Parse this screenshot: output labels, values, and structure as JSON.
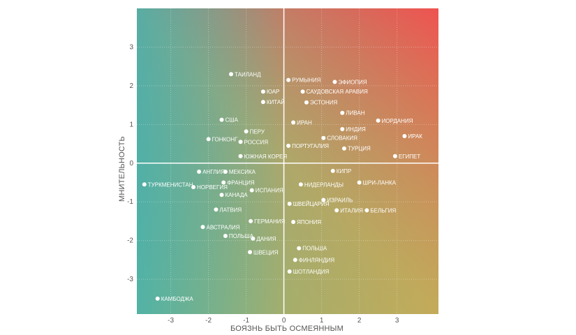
{
  "chart_data": {
    "type": "scatter",
    "title": "",
    "xlabel": "БОЯЗНЬ БЫТЬ ОСМЕЯННЫМ",
    "ylabel": "МНИТЕЛЬНОСТЬ",
    "xlim": [
      -3.9,
      4.1
    ],
    "ylim": [
      -3.9,
      4.0
    ],
    "xticks": [
      -3,
      -2,
      -1,
      0,
      1,
      2,
      3
    ],
    "yticks": [
      -3,
      -2,
      -1,
      0,
      1,
      2,
      3
    ],
    "grid": true,
    "gradient_colors": {
      "top_right": "#ef5350",
      "bottom_right": "#f2b233",
      "left": "#2eb2bf",
      "bottom_mid": "#9aa47a"
    },
    "point_color": "#ffffff",
    "axis_line_color": "#ffffff",
    "points": [
      {
        "label": "ТАИЛАНД",
        "x": -1.4,
        "y": 2.3
      },
      {
        "label": "ЮАР",
        "x": -0.55,
        "y": 1.85
      },
      {
        "label": "КИТАЙ",
        "x": -0.55,
        "y": 1.58
      },
      {
        "label": "США",
        "x": -1.65,
        "y": 1.12
      },
      {
        "label": "ПЕРУ",
        "x": -1.0,
        "y": 0.82
      },
      {
        "label": "ГОНКОНГ",
        "x": -2.0,
        "y": 0.62
      },
      {
        "label": "РОССИЯ",
        "x": -1.15,
        "y": 0.55
      },
      {
        "label": "ЮЖНАЯ КОРЕЯ",
        "x": -1.15,
        "y": 0.18
      },
      {
        "label": "РУМЫНИЯ",
        "x": 0.12,
        "y": 2.15
      },
      {
        "label": "ЭФИОПИЯ",
        "x": 1.35,
        "y": 2.1
      },
      {
        "label": "САУДОВСКАЯ АРАВИЯ",
        "x": 0.5,
        "y": 1.85
      },
      {
        "label": "ЭСТОНИЯ",
        "x": 0.6,
        "y": 1.57
      },
      {
        "label": "ЛИВАН",
        "x": 1.55,
        "y": 1.3
      },
      {
        "label": "ИОРДАНИЯ",
        "x": 2.5,
        "y": 1.1
      },
      {
        "label": "ИРАН",
        "x": 0.25,
        "y": 1.05
      },
      {
        "label": "ИНДИЯ",
        "x": 1.55,
        "y": 0.88
      },
      {
        "label": "ИРАК",
        "x": 3.2,
        "y": 0.7
      },
      {
        "label": "СЛОВАКИЯ",
        "x": 1.05,
        "y": 0.65
      },
      {
        "label": "ПОРТУГАЛИЯ",
        "x": 0.12,
        "y": 0.45
      },
      {
        "label": "ТУРЦИЯ",
        "x": 1.6,
        "y": 0.38
      },
      {
        "label": "ЕГИПЕТ",
        "x": 2.95,
        "y": 0.18
      },
      {
        "label": "АНГЛИЯ",
        "x": -2.25,
        "y": -0.22
      },
      {
        "label": "МЕКСИКА",
        "x": -1.55,
        "y": -0.22
      },
      {
        "label": "ТУРКМЕНИСТАН",
        "x": -3.7,
        "y": -0.55
      },
      {
        "label": "НОРВЕГИЯ",
        "x": -2.4,
        "y": -0.62
      },
      {
        "label": "ФРАНЦИЯ",
        "x": -1.6,
        "y": -0.5
      },
      {
        "label": "ИСПАНИЯ",
        "x": -0.85,
        "y": -0.7
      },
      {
        "label": "КАНАДА",
        "x": -1.65,
        "y": -0.82
      },
      {
        "label": "КИПР",
        "x": 1.3,
        "y": -0.2
      },
      {
        "label": "НИДЕРЛАНДЫ",
        "x": 0.45,
        "y": -0.55
      },
      {
        "label": "ШРИ-ЛАНКА",
        "x": 2.0,
        "y": -0.5
      },
      {
        "label": "ИЗРАИЛЬ",
        "x": 1.05,
        "y": -0.95
      },
      {
        "label": "ШВЕЙЦАРИЯ",
        "x": 0.15,
        "y": -1.05
      },
      {
        "label": "ИТАЛИЯ",
        "x": 1.4,
        "y": -1.22
      },
      {
        "label": "БЕЛЬГИЯ",
        "x": 2.2,
        "y": -1.22
      },
      {
        "label": "ЛАТВИЯ",
        "x": -1.8,
        "y": -1.2
      },
      {
        "label": "ГЕРМАНИЯ",
        "x": -0.88,
        "y": -1.5
      },
      {
        "label": "ЯПОНИЯ",
        "x": 0.25,
        "y": -1.52
      },
      {
        "label": "АВСТРАЛИЯ",
        "x": -2.15,
        "y": -1.65
      },
      {
        "label": "ПОЛЬША",
        "x": -1.55,
        "y": -1.88
      },
      {
        "label": "ДАНИЯ",
        "x": -0.82,
        "y": -1.95
      },
      {
        "label": "ШВЕЦИЯ",
        "x": -0.9,
        "y": -2.3
      },
      {
        "label": "ПОЛЬША",
        "x": 0.4,
        "y": -2.2
      },
      {
        "label": "ФИНЛЯНДИЯ",
        "x": 0.3,
        "y": -2.5
      },
      {
        "label": "ШОТЛАНДИЯ",
        "x": 0.15,
        "y": -2.8
      },
      {
        "label": "КАМБОДЖА",
        "x": -3.35,
        "y": -3.5
      }
    ]
  }
}
